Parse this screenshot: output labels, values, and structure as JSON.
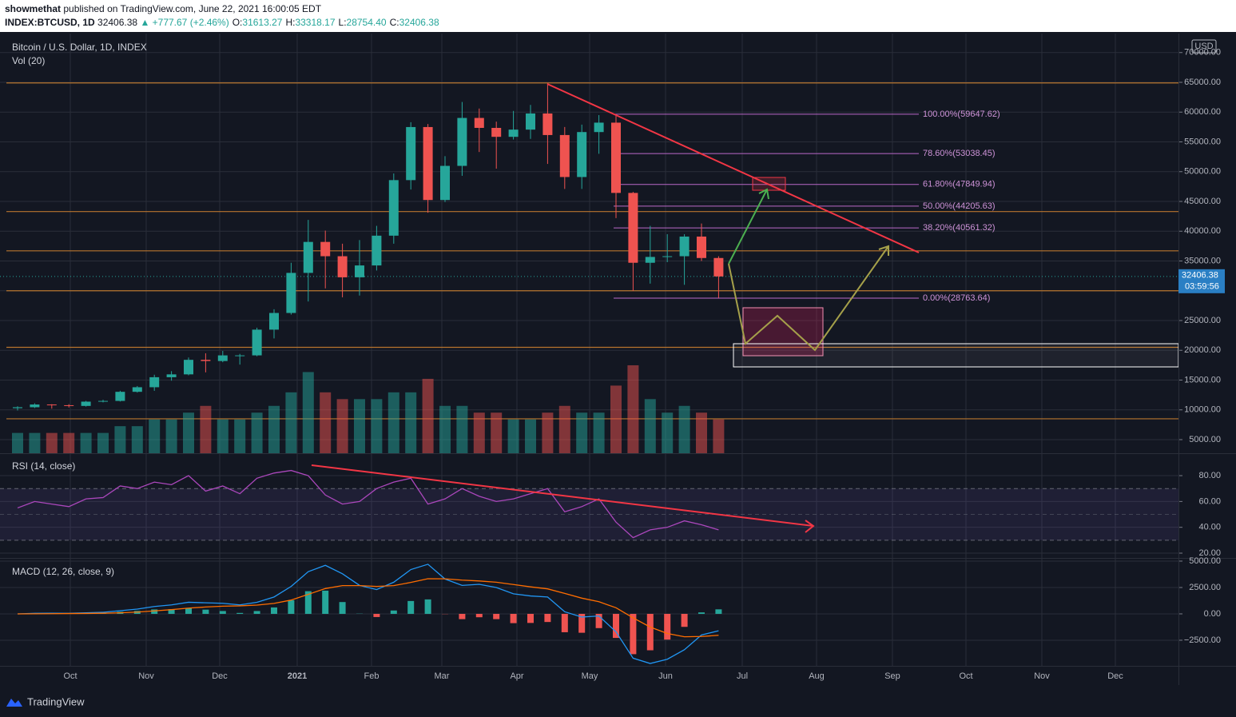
{
  "header": {
    "author": "showmethat",
    "published": "published on TradingView.com, June 22, 2021 16:00:05 EDT",
    "symbol": "INDEX:BTCUSD, 1D",
    "change": "▲ +777.67 (+2.46%)",
    "fields": [
      {
        "name": "O:",
        "text": "31613.27"
      },
      {
        "name": "H:",
        "text": "33318.17"
      },
      {
        "name": "L:",
        "text": "28754.40"
      },
      {
        "name": "C:",
        "text": "32406.38"
      }
    ]
  },
  "chart_data": {
    "type": "candlestick",
    "title": "Bitcoin / U.S. Dollar, 1D, INDEX",
    "volume_label": "Vol (20)",
    "unit": "USD",
    "countdown": "03:59:56",
    "x_labels": [
      "Oct",
      "Nov",
      "Dec",
      "2021",
      "Feb",
      "Mar",
      "Apr",
      "May",
      "Jun",
      "Jul",
      "Aug",
      "Sep",
      "Oct",
      "Nov",
      "Dec"
    ],
    "open": [
      10280,
      10440,
      10900,
      10780,
      10660,
      11380,
      11500,
      13030,
      13800,
      15480,
      15960,
      18400,
      18200,
      19150,
      19150,
      23470,
      26270,
      33000,
      38200,
      35800,
      32260,
      34250,
      39250,
      48580,
      57490,
      45240,
      50970,
      59020,
      57350,
      55850,
      57060,
      59770,
      56150,
      49100,
      56650,
      58230,
      46430,
      34700,
      35680,
      35800,
      39100,
      35500
    ],
    "high": [
      10600,
      11100,
      10950,
      10950,
      11500,
      11700,
      13200,
      14000,
      15900,
      16500,
      18800,
      19500,
      19900,
      19400,
      23800,
      26900,
      34700,
      41900,
      40100,
      37900,
      38500,
      40900,
      49700,
      58300,
      58000,
      52600,
      61700,
      60600,
      58400,
      60200,
      61200,
      64900,
      57500,
      57900,
      59500,
      59500,
      46600,
      40900,
      39500,
      39500,
      41300,
      35800
    ],
    "low": [
      9900,
      10300,
      10200,
      10400,
      10550,
      11250,
      11400,
      12900,
      13200,
      14900,
      15800,
      16300,
      18000,
      17600,
      19000,
      22000,
      26000,
      28200,
      30400,
      28900,
      29200,
      33400,
      37900,
      47000,
      43100,
      44900,
      49300,
      53300,
      50500,
      55400,
      55500,
      51300,
      47100,
      47100,
      53000,
      42200,
      30000,
      31200,
      34800,
      31000,
      35000,
      28800
    ],
    "close": [
      10440,
      10900,
      10780,
      10660,
      11380,
      11500,
      13030,
      13800,
      15480,
      15960,
      18400,
      18200,
      19150,
      19150,
      23470,
      26270,
      33000,
      38200,
      35800,
      32260,
      34250,
      39250,
      48580,
      57490,
      45240,
      50970,
      59020,
      57350,
      55850,
      57060,
      59770,
      56150,
      49100,
      56650,
      58230,
      46430,
      34700,
      35680,
      35800,
      39100,
      35500,
      32406.38
    ],
    "volume": [
      3,
      3,
      3,
      3,
      3,
      3,
      4,
      4,
      5,
      5,
      6,
      7,
      5,
      5,
      6,
      7,
      9,
      12,
      9,
      8,
      8,
      8,
      9,
      9,
      11,
      7,
      7,
      6,
      6,
      5,
      5,
      6,
      7,
      6,
      6,
      10,
      13,
      8,
      6,
      7,
      6,
      5
    ],
    "ylim": [
      2718,
      73188
    ],
    "yticks": [
      {
        "value": 5000,
        "label": "5000.00"
      },
      {
        "value": 10000,
        "label": "10000.00"
      },
      {
        "value": 15000,
        "label": "15000.00"
      },
      {
        "value": 20000,
        "label": "20000.00"
      },
      {
        "value": 25000,
        "label": "25000.00"
      },
      {
        "value": 30000,
        "label": "30000.00"
      },
      {
        "value": 35000,
        "label": "35000.00"
      },
      {
        "value": 40000,
        "label": "40000.00"
      },
      {
        "value": 45000,
        "label": "45000.00"
      },
      {
        "value": 50000,
        "label": "50000.00"
      },
      {
        "value": 55000,
        "label": "55000.00"
      },
      {
        "value": 60000,
        "label": "60000.00"
      },
      {
        "value": 65000,
        "label": "65000.00"
      },
      {
        "value": 70000,
        "label": "70000.00"
      }
    ],
    "levels": [
      64900,
      43300,
      36700,
      30000,
      20500,
      8500
    ],
    "fib_levels": [
      {
        "value": 59647.62,
        "label": "100.00%(59647.62)"
      },
      {
        "value": 53038.45,
        "label": "78.60%(53038.45)"
      },
      {
        "value": 47849.94,
        "label": "61.80%(47849.94)"
      },
      {
        "value": 44205.63,
        "label": "50.00%(44205.63)"
      },
      {
        "value": 40561.32,
        "label": "38.20%(40561.32)"
      },
      {
        "value": 28763.64,
        "label": "0.00%(28763.64)"
      }
    ],
    "grid": true
  },
  "rsi": {
    "type": "line",
    "title": "RSI (14, close)",
    "color": "#ab47bc",
    "values": [
      55,
      60,
      58,
      56,
      62,
      63,
      72,
      70,
      75,
      73,
      80,
      68,
      72,
      66,
      78,
      82,
      84,
      80,
      65,
      58,
      60,
      70,
      75,
      78,
      58,
      62,
      70,
      64,
      60,
      62,
      66,
      70,
      52,
      56,
      62,
      44,
      32,
      38,
      40,
      45,
      42,
      38
    ],
    "ylim": [
      16.9,
      95.5
    ],
    "yticks": [
      {
        "value": 20,
        "label": "20.00"
      },
      {
        "value": 40,
        "label": "40.00"
      },
      {
        "value": 60,
        "label": "60.00"
      },
      {
        "value": 80,
        "label": "80.00"
      }
    ],
    "bands": [
      70,
      50,
      30
    ]
  },
  "macd": {
    "type": "line",
    "title": "MACD (12, 26, close, 9)",
    "macd_color": "#2196f3",
    "signal_color": "#ff6d00",
    "macd": [
      0,
      50,
      60,
      50,
      100,
      150,
      300,
      450,
      700,
      850,
      1100,
      1050,
      1000,
      850,
      1100,
      1600,
      2600,
      4000,
      4600,
      3800,
      2700,
      2300,
      3000,
      4200,
      4700,
      3300,
      2700,
      2800,
      2500,
      1900,
      1700,
      1600,
      200,
      -300,
      -200,
      -1700,
      -4200,
      -4700,
      -4300,
      -3400,
      -2000,
      -1600
    ],
    "signal": [
      0,
      10,
      20,
      30,
      40,
      60,
      100,
      170,
      280,
      400,
      550,
      650,
      730,
      760,
      830,
      990,
      1310,
      1850,
      2400,
      2680,
      2680,
      2600,
      2680,
      2980,
      3330,
      3320,
      3200,
      3120,
      3000,
      2780,
      2560,
      2370,
      1940,
      1490,
      1150,
      580,
      -380,
      -1250,
      -1860,
      -2170,
      -2140,
      -2030
    ],
    "histogram": [
      0,
      40,
      40,
      20,
      60,
      90,
      200,
      280,
      420,
      450,
      550,
      400,
      270,
      90,
      270,
      610,
      1290,
      2150,
      2200,
      1120,
      20,
      -300,
      320,
      1220,
      1370,
      -20,
      -500,
      -320,
      -500,
      -880,
      -860,
      -770,
      -1740,
      -1790,
      -1350,
      -2280,
      -3820,
      -3450,
      -2440,
      -1230,
      140,
      430
    ],
    "ylim": [
      -4850,
      5150
    ],
    "yticks": [
      {
        "value": -2500,
        "label": "−2500.00"
      },
      {
        "value": 0,
        "label": "0.00"
      },
      {
        "value": 2500,
        "label": "2500.00"
      },
      {
        "value": 5000,
        "label": "5000.00"
      }
    ]
  },
  "footer": {
    "brand": "TradingView"
  }
}
